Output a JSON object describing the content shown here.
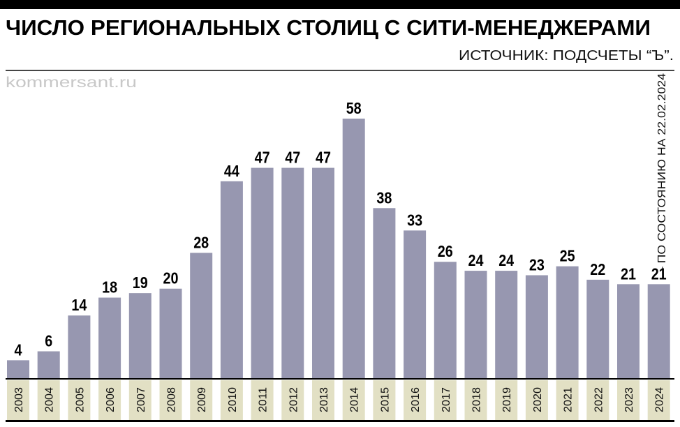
{
  "chart_data": {
    "type": "bar",
    "title": "ЧИСЛО РЕГИОНАЛЬНЫХ СТОЛИЦ С СИТИ-МЕНЕДЖЕРАМИ",
    "source": "ИСТОЧНИК: ПОДСЧЕТЫ “Ъ”.",
    "watermark": "kommersant.ru",
    "note": "— ПО СОСТОЯНИЮ НА 22.02.2024",
    "categories": [
      "2003",
      "2004",
      "2005",
      "2006",
      "2007",
      "2008",
      "2009",
      "2010",
      "2011",
      "2012",
      "2013",
      "2014",
      "2015",
      "2016",
      "2017",
      "2018",
      "2019",
      "2020",
      "2021",
      "2022",
      "2023",
      "2024"
    ],
    "values": [
      4,
      6,
      14,
      18,
      19,
      20,
      28,
      44,
      47,
      47,
      47,
      58,
      38,
      33,
      26,
      24,
      24,
      23,
      25,
      22,
      21,
      21
    ],
    "xlabel": "",
    "ylabel": "",
    "ylim": [
      0,
      58
    ],
    "grid": false,
    "data_labels": true,
    "colors": {
      "bar": "#9797b0",
      "label_cell": "#e2e0c4",
      "rule": "#000000"
    }
  }
}
